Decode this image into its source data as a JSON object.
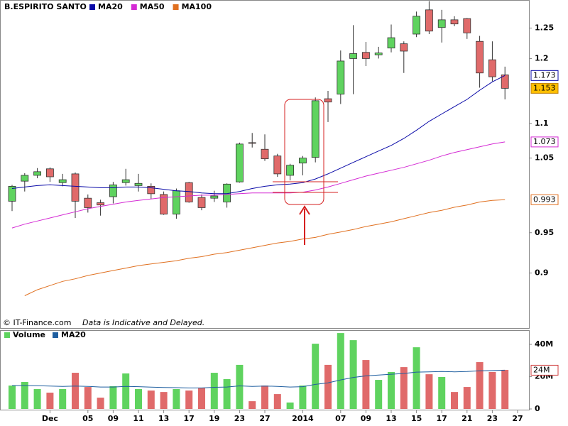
{
  "chart_data": [
    {
      "type": "candlestick",
      "title": "B.ESPIRITO SANTO",
      "open": [
        0.991,
        1.018,
        1.026,
        1.035,
        1.016,
        1.028,
        0.995,
        0.989,
        0.997,
        1.016,
        1.012,
        1.011,
        1.0,
        0.974,
        1.016,
        0.996,
        0.995,
        0.99,
        1.017,
        1.072,
        1.0625,
        1.053,
        1.026,
        1.043,
        1.051,
        1.137,
        1.144,
        1.2,
        1.21,
        1.206,
        1.217,
        1.224,
        1.24,
        1.281,
        1.251,
        1.264,
        1.266,
        1.228,
        1.198,
        1.174,
        null
      ],
      "high": [
        1.013,
        1.029,
        1.036,
        1.037,
        1.028,
        1.03,
        1.0,
        0.993,
        1.017,
        1.035,
        1.028,
        1.015,
        1.004,
        1.008,
        1.017,
        1.0,
        1.005,
        1.015,
        1.072,
        1.086,
        1.084,
        1.056,
        1.042,
        1.053,
        1.139,
        1.149,
        1.213,
        1.255,
        1.227,
        1.219,
        1.256,
        1.228,
        1.278,
        1.296,
        1.281,
        1.27,
        1.267,
        1.237,
        1.228,
        1.187,
        null
      ],
      "low": [
        0.978,
        1.004,
        1.022,
        1.017,
        1.011,
        0.969,
        0.976,
        0.972,
        0.988,
        1.012,
        1.004,
        0.994,
        0.973,
        0.968,
        0.989,
        0.979,
        0.99,
        0.9825,
        1.016,
        1.065,
        1.046,
        1.024,
        1.019,
        1.026,
        1.044,
        1.102,
        1.129,
        1.144,
        1.188,
        1.2,
        1.21,
        1.177,
        1.235,
        1.24,
        1.226,
        1.253,
        1.232,
        1.154,
        1.164,
        1.136,
        null
      ],
      "close": [
        1.011,
        1.026,
        1.031,
        1.024,
        1.02,
        0.991,
        0.9825,
        0.986,
        1.013,
        1.02,
        1.015,
        1.001,
        0.974,
        1.005,
        0.99,
        0.9825,
        0.998,
        1.014,
        1.07,
        1.071,
        1.049,
        1.028,
        1.04,
        1.05,
        1.134,
        1.132,
        1.196,
        1.208,
        1.2,
        1.209,
        1.234,
        1.212,
        1.27,
        1.245,
        1.264,
        1.257,
        1.242,
        1.177,
        1.171,
        1.153,
        null
      ],
      "up_color": "#5fd35f",
      "down_color": "#e06a6a",
      "last_label": "1.153",
      "series": [
        {
          "name": "MA20",
          "color": "#0a0aa8",
          "last_label": "1.173",
          "values": [
            1.008,
            1.01,
            1.012,
            1.013,
            1.012,
            1.011,
            1.01,
            1.009,
            1.009,
            1.01,
            1.01,
            1.009,
            1.007,
            1.005,
            1.004,
            1.002,
            1.001,
            1.001,
            1.004,
            1.008,
            1.011,
            1.013,
            1.014,
            1.016,
            1.021,
            1.028,
            1.036,
            1.044,
            1.052,
            1.06,
            1.068,
            1.078,
            1.09,
            1.103,
            1.114,
            1.125,
            1.136,
            1.15,
            1.163,
            1.173,
            null
          ]
        },
        {
          "name": "MA50",
          "color": "#d42ad4",
          "last_label": "1.073",
          "values": [
            0.956,
            0.961,
            0.965,
            0.969,
            0.973,
            0.977,
            0.981,
            0.984,
            0.987,
            0.99,
            0.992,
            0.994,
            0.996,
            0.997,
            0.998,
            0.999,
            0.999,
            1.0,
            1.001,
            1.002,
            1.002,
            1.002,
            1.002,
            1.003,
            1.006,
            1.01,
            1.015,
            1.02,
            1.025,
            1.029,
            1.033,
            1.037,
            1.042,
            1.047,
            1.053,
            1.058,
            1.062,
            1.066,
            1.07,
            1.073,
            null
          ]
        },
        {
          "name": "MA100",
          "color": "#e07020",
          "last_label": "0.993",
          "values": [
            null,
            0.873,
            0.88,
            0.885,
            0.89,
            0.893,
            0.897,
            0.9,
            0.903,
            0.906,
            0.909,
            0.911,
            0.913,
            0.915,
            0.918,
            0.92,
            0.923,
            0.925,
            0.928,
            0.931,
            0.934,
            0.937,
            0.939,
            0.942,
            0.944,
            0.948,
            0.951,
            0.954,
            0.958,
            0.961,
            0.964,
            0.968,
            0.972,
            0.976,
            0.979,
            0.983,
            0.986,
            0.99,
            0.992,
            0.993,
            null
          ]
        }
      ],
      "ylim": [
        0.836,
        1.298
      ],
      "yticks": [
        0.9,
        0.95,
        1.05,
        1.1,
        1.2,
        1.25
      ],
      "log_scale": true,
      "annotations": [
        "© IT-Finance.com",
        "Data is Indicative and Delayed."
      ]
    },
    {
      "type": "bar",
      "categories": [
        null,
        null,
        null,
        "Dec",
        null,
        null,
        "05",
        null,
        "09",
        null,
        "11",
        null,
        "13",
        null,
        "17",
        null,
        "19",
        null,
        "23",
        null,
        "27",
        null,
        null,
        "2014",
        null,
        null,
        "07",
        null,
        "09",
        null,
        "13",
        null,
        "15",
        null,
        "17",
        null,
        "21",
        null,
        "23",
        null,
        "27"
      ],
      "series": [
        {
          "name": "Volume",
          "color": "#5fd35f",
          "values": [
            14.5,
            16.7,
            12.3,
            10.1,
            12.3,
            22.4,
            13.6,
            7.0,
            14.1,
            22.0,
            12.3,
            11.4,
            10.5,
            12.3,
            11.4,
            13.2,
            22.4,
            18.5,
            27.3,
            4.8,
            14.5,
            9.2,
            4.0,
            14.5,
            40.4,
            27.3,
            47.0,
            42.6,
            30.3,
            18.0,
            22.9,
            25.9,
            38.2,
            21.5,
            19.8,
            10.5,
            13.6,
            29.0,
            22.9,
            24.2,
            null
          ]
        },
        {
          "name": "MA20",
          "color": "#1f5fa0",
          "last_label": "24M",
          "values": [
            14.5,
            14.5,
            14.4,
            14.2,
            14.0,
            14.2,
            14.0,
            13.6,
            13.6,
            14.0,
            13.8,
            13.5,
            13.3,
            13.2,
            13.0,
            13.0,
            13.4,
            13.6,
            14.3,
            14.0,
            14.2,
            14.0,
            13.6,
            13.8,
            15.2,
            16.2,
            18.0,
            19.5,
            20.5,
            21.0,
            21.5,
            22.0,
            22.8,
            23.0,
            23.2,
            23.0,
            23.2,
            23.6,
            23.8,
            24.0,
            null
          ]
        }
      ],
      "ylim": [
        0,
        48.8
      ],
      "yticks": [
        0,
        {
          "value": 20,
          "label": "20M"
        },
        {
          "value": 40,
          "label": "40M"
        }
      ]
    }
  ]
}
